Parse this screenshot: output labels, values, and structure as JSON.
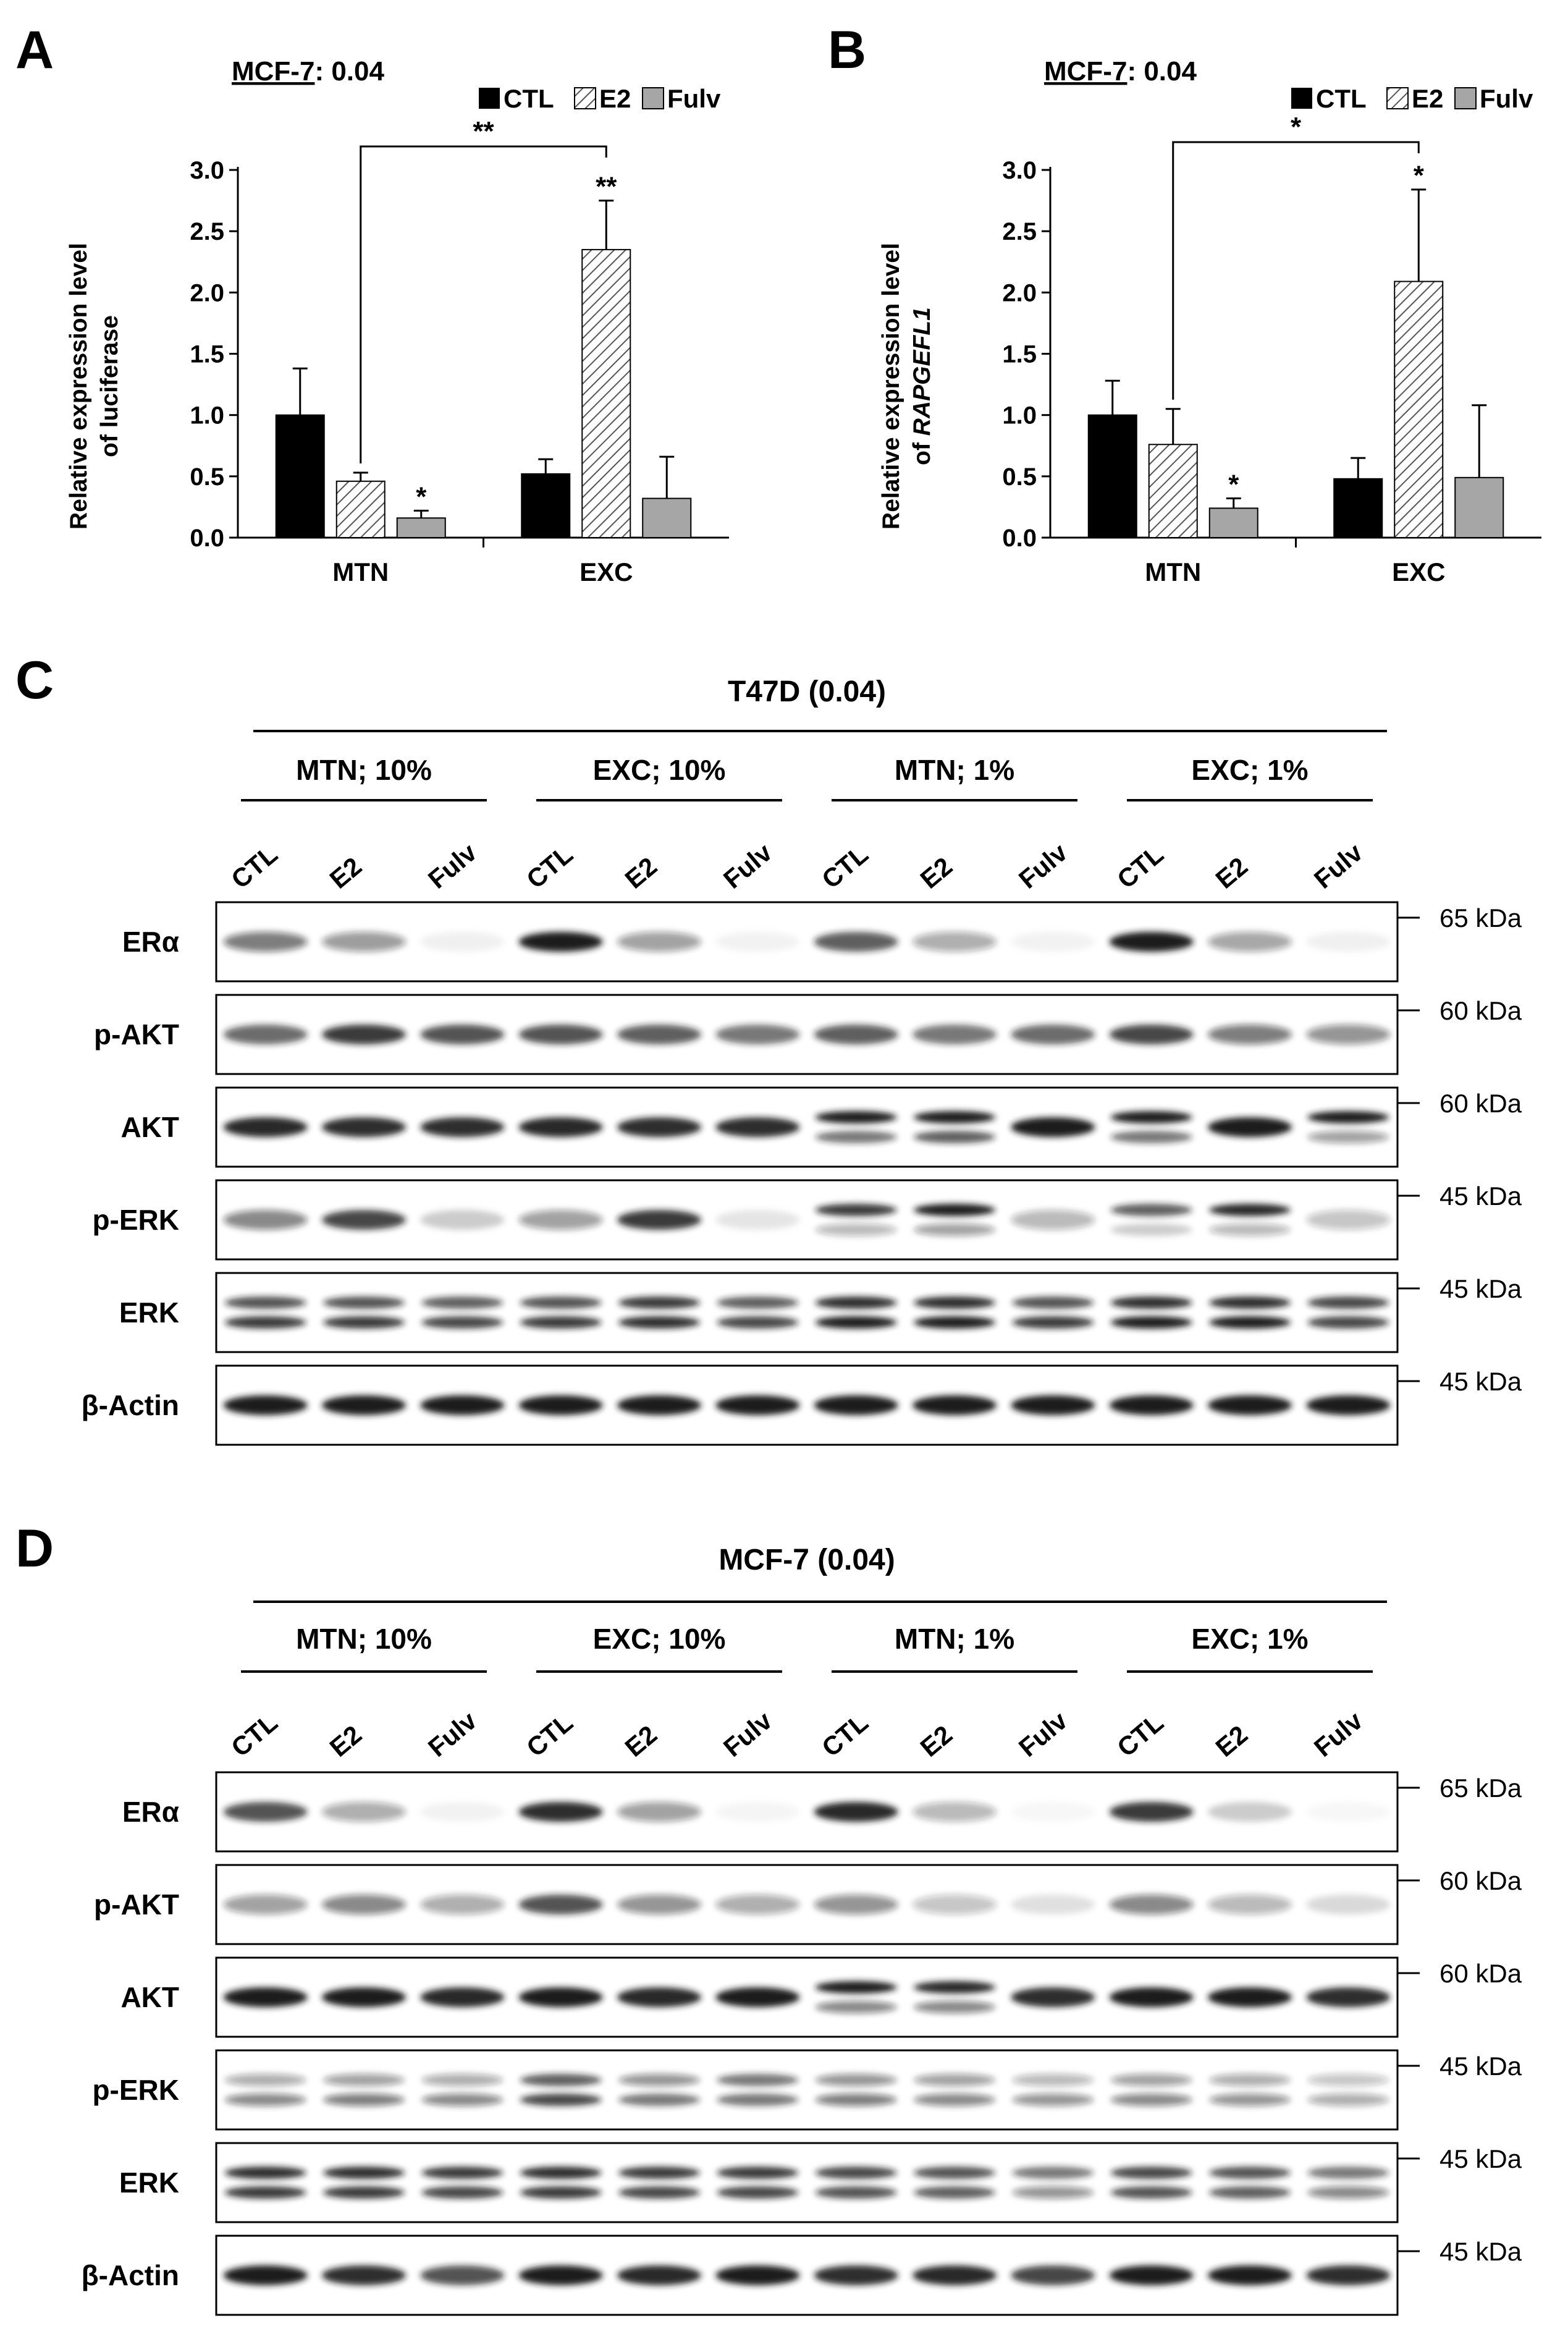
{
  "panels": {
    "A": "A",
    "B": "B",
    "C": "C",
    "D": "D"
  },
  "legend": {
    "items": [
      {
        "label": "CTL",
        "fill": "solid-black"
      },
      {
        "label": "E2",
        "fill": "hatched"
      },
      {
        "label": "Fulv",
        "fill": "solid-gray"
      }
    ]
  },
  "colors": {
    "ctl": "#000000",
    "e2_hatch": "#555555",
    "fulv": "#a6a6a6",
    "band": "#1a1a1a",
    "blot_bg": "#ffffff"
  },
  "chart_data": [
    {
      "type": "bar",
      "panel": "A",
      "title_cell": "MCF-7",
      "title_value": ": 0.04",
      "ylabel_line1": "Relative expression level",
      "ylabel_line2": "of luciferase",
      "ylim": [
        0,
        3.0
      ],
      "yticks": [
        "0.0",
        "0.5",
        "1.0",
        "1.5",
        "2.0",
        "2.5",
        "3.0"
      ],
      "categories": [
        "MTN",
        "EXC"
      ],
      "series": [
        {
          "name": "CTL",
          "values": [
            1.0,
            0.52
          ],
          "errors": [
            0.38,
            0.12
          ]
        },
        {
          "name": "E2",
          "values": [
            0.46,
            2.35
          ],
          "errors": [
            0.07,
            0.4
          ]
        },
        {
          "name": "Fulv",
          "values": [
            0.16,
            0.32
          ],
          "errors": [
            0.06,
            0.34
          ]
        }
      ],
      "bar_stars": [
        {
          "category": 1,
          "series": 1,
          "text": "**"
        },
        {
          "category": 0,
          "series": 2,
          "text": "*"
        }
      ],
      "bracket": {
        "from": {
          "category": 0,
          "series": 1
        },
        "to": {
          "category": 1,
          "series": 1
        },
        "text": "**"
      }
    },
    {
      "type": "bar",
      "panel": "B",
      "title_cell": "MCF-7",
      "title_value": ": 0.04",
      "ylabel_line1": "Relative expression level",
      "ylabel_line2_prefix": "of ",
      "ylabel_line2_gene": "RAPGEFL1",
      "ylim": [
        0,
        3.0
      ],
      "yticks": [
        "0.0",
        "0.5",
        "1.0",
        "1.5",
        "2.0",
        "2.5",
        "3.0"
      ],
      "categories": [
        "MTN",
        "EXC"
      ],
      "series": [
        {
          "name": "CTL",
          "values": [
            1.0,
            0.48
          ],
          "errors": [
            0.28,
            0.17
          ]
        },
        {
          "name": "E2",
          "values": [
            0.76,
            2.09
          ],
          "errors": [
            0.29,
            0.75
          ]
        },
        {
          "name": "Fulv",
          "values": [
            0.24,
            0.49
          ],
          "errors": [
            0.08,
            0.59
          ]
        }
      ],
      "bar_stars": [
        {
          "category": 1,
          "series": 1,
          "text": "*"
        },
        {
          "category": 0,
          "series": 2,
          "text": "*"
        }
      ],
      "bracket": {
        "from": {
          "category": 0,
          "series": 1
        },
        "to": {
          "category": 1,
          "series": 1
        },
        "text": "*"
      }
    }
  ],
  "blots": [
    {
      "panel": "C",
      "title": "T47D (0.04)",
      "groups": [
        "MTN; 10%",
        "EXC; 10%",
        "MTN; 1%",
        "EXC; 1%"
      ],
      "lanes": [
        "CTL",
        "E2",
        "Fulv"
      ],
      "rows": [
        {
          "protein": "ERα",
          "mw": "65 kDa",
          "bands": [
            [
              0.55
            ],
            [
              0.42
            ],
            [
              0.06
            ],
            [
              1.0
            ],
            [
              0.4
            ],
            [
              0.05
            ],
            [
              0.7
            ],
            [
              0.35
            ],
            [
              0.05
            ],
            [
              1.0
            ],
            [
              0.38
            ],
            [
              0.06
            ]
          ]
        },
        {
          "protein": "p-AKT",
          "mw": "60 kDa",
          "bands": [
            [
              0.65
            ],
            [
              0.85
            ],
            [
              0.75
            ],
            [
              0.75
            ],
            [
              0.7
            ],
            [
              0.6
            ],
            [
              0.7
            ],
            [
              0.6
            ],
            [
              0.65
            ],
            [
              0.8
            ],
            [
              0.55
            ],
            [
              0.45
            ]
          ]
        },
        {
          "protein": "AKT",
          "mw": "60 kDa",
          "bands": [
            [
              0.95
            ],
            [
              0.9
            ],
            [
              0.9
            ],
            [
              0.95
            ],
            [
              0.9
            ],
            [
              0.9
            ],
            [
              1.0,
              0.6
            ],
            [
              1.0,
              0.7
            ],
            [
              1.0
            ],
            [
              1.0,
              0.6
            ],
            [
              1.0
            ],
            [
              1.0,
              0.4
            ]
          ]
        },
        {
          "protein": "p-ERK",
          "mw": "45 kDa",
          "bands": [
            [
              0.5
            ],
            [
              0.8
            ],
            [
              0.2
            ],
            [
              0.4
            ],
            [
              0.85
            ],
            [
              0.1
            ],
            [
              0.85,
              0.3
            ],
            [
              1.0,
              0.4
            ],
            [
              0.3
            ],
            [
              0.7,
              0.2
            ],
            [
              0.95,
              0.3
            ],
            [
              0.25
            ]
          ]
        },
        {
          "protein": "ERK",
          "mw": "45 kDa",
          "bands": [
            [
              0.75,
              0.85
            ],
            [
              0.75,
              0.85
            ],
            [
              0.7,
              0.8
            ],
            [
              0.75,
              0.85
            ],
            [
              0.85,
              0.9
            ],
            [
              0.7,
              0.8
            ],
            [
              0.9,
              1.0
            ],
            [
              0.9,
              1.0
            ],
            [
              0.75,
              0.85
            ],
            [
              0.9,
              1.0
            ],
            [
              0.9,
              1.0
            ],
            [
              0.8,
              0.8
            ]
          ]
        },
        {
          "protein": "β-Actin",
          "mw": "45 kDa",
          "bands": [
            [
              1.0
            ],
            [
              1.0
            ],
            [
              1.0
            ],
            [
              1.0
            ],
            [
              1.0
            ],
            [
              1.0
            ],
            [
              1.0
            ],
            [
              1.0
            ],
            [
              1.0
            ],
            [
              1.0
            ],
            [
              1.0
            ],
            [
              1.0
            ]
          ]
        }
      ]
    },
    {
      "panel": "D",
      "title": "MCF-7 (0.04)",
      "groups": [
        "MTN; 10%",
        "EXC; 10%",
        "MTN; 1%",
        "EXC; 1%"
      ],
      "lanes": [
        "CTL",
        "E2",
        "Fulv"
      ],
      "rows": [
        {
          "protein": "ERα",
          "mw": "65 kDa",
          "bands": [
            [
              0.75
            ],
            [
              0.35
            ],
            [
              0.05
            ],
            [
              0.9
            ],
            [
              0.4
            ],
            [
              0.04
            ],
            [
              0.95
            ],
            [
              0.3
            ],
            [
              0.03
            ],
            [
              0.85
            ],
            [
              0.2
            ],
            [
              0.03
            ]
          ]
        },
        {
          "protein": "p-AKT",
          "mw": "60 kDa",
          "bands": [
            [
              0.4
            ],
            [
              0.5
            ],
            [
              0.35
            ],
            [
              0.75
            ],
            [
              0.45
            ],
            [
              0.35
            ],
            [
              0.45
            ],
            [
              0.25
            ],
            [
              0.12
            ],
            [
              0.5
            ],
            [
              0.3
            ],
            [
              0.15
            ]
          ]
        },
        {
          "protein": "AKT",
          "mw": "60 kDa",
          "bands": [
            [
              1.0
            ],
            [
              1.0
            ],
            [
              0.95
            ],
            [
              1.0
            ],
            [
              0.95
            ],
            [
              1.0
            ],
            [
              1.0,
              0.5
            ],
            [
              0.95,
              0.5
            ],
            [
              0.9
            ],
            [
              1.0
            ],
            [
              1.0
            ],
            [
              0.9
            ]
          ]
        },
        {
          "protein": "p-ERK",
          "mw": "45 kDa",
          "bands": [
            [
              0.35,
              0.5
            ],
            [
              0.4,
              0.55
            ],
            [
              0.35,
              0.5
            ],
            [
              0.7,
              0.8
            ],
            [
              0.45,
              0.6
            ],
            [
              0.6,
              0.6
            ],
            [
              0.45,
              0.55
            ],
            [
              0.4,
              0.5
            ],
            [
              0.3,
              0.45
            ],
            [
              0.4,
              0.5
            ],
            [
              0.35,
              0.45
            ],
            [
              0.25,
              0.35
            ]
          ]
        },
        {
          "protein": "ERK",
          "mw": "45 kDa",
          "bands": [
            [
              0.9,
              0.85
            ],
            [
              0.9,
              0.85
            ],
            [
              0.85,
              0.8
            ],
            [
              0.9,
              0.85
            ],
            [
              0.85,
              0.8
            ],
            [
              0.85,
              0.8
            ],
            [
              0.8,
              0.75
            ],
            [
              0.75,
              0.7
            ],
            [
              0.6,
              0.45
            ],
            [
              0.8,
              0.75
            ],
            [
              0.75,
              0.7
            ],
            [
              0.6,
              0.5
            ]
          ]
        },
        {
          "protein": "β-Actin",
          "mw": "45 kDa",
          "bands": [
            [
              1.0
            ],
            [
              0.9
            ],
            [
              0.75
            ],
            [
              1.0
            ],
            [
              0.95
            ],
            [
              1.0
            ],
            [
              0.9
            ],
            [
              0.95
            ],
            [
              0.8
            ],
            [
              1.0
            ],
            [
              1.0
            ],
            [
              0.9
            ]
          ]
        }
      ]
    }
  ]
}
